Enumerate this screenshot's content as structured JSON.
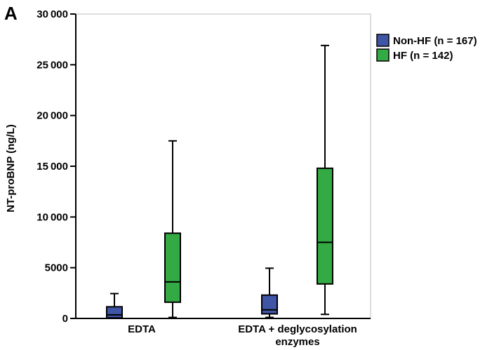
{
  "panel_label": "A",
  "chart_data": {
    "type": "boxplot",
    "title": "",
    "ylabel": "NT-proBNP (ng/L)",
    "xlabel": "",
    "ylim": [
      0,
      30000
    ],
    "yticks": [
      0,
      5000,
      10000,
      15000,
      20000,
      25000,
      30000
    ],
    "ytick_labels": [
      "0",
      "5000",
      "10 000",
      "15 000",
      "20 000",
      "25 000",
      "30 000"
    ],
    "categories": [
      {
        "lines": [
          "EDTA"
        ]
      },
      {
        "lines": [
          "EDTA + deglycosylation",
          "enzymes"
        ]
      }
    ],
    "grid": false,
    "legend_position": "top-right outside",
    "series": [
      {
        "name": "Non-HF (n = 167)",
        "color": "#3f56a6",
        "boxes": [
          {
            "whisker_low": 0,
            "q1": 50,
            "median": 350,
            "q3": 1150,
            "whisker_high": 2450
          },
          {
            "whisker_low": 100,
            "q1": 450,
            "median": 850,
            "q3": 2300,
            "whisker_high": 4950
          }
        ]
      },
      {
        "name": "HF (n = 142)",
        "color": "#33aa44",
        "boxes": [
          {
            "whisker_low": 100,
            "q1": 1600,
            "median": 3600,
            "q3": 8400,
            "whisker_high": 17500
          },
          {
            "whisker_low": 400,
            "q1": 3400,
            "median": 7500,
            "q3": 14800,
            "whisker_high": 26900
          }
        ]
      }
    ]
  }
}
